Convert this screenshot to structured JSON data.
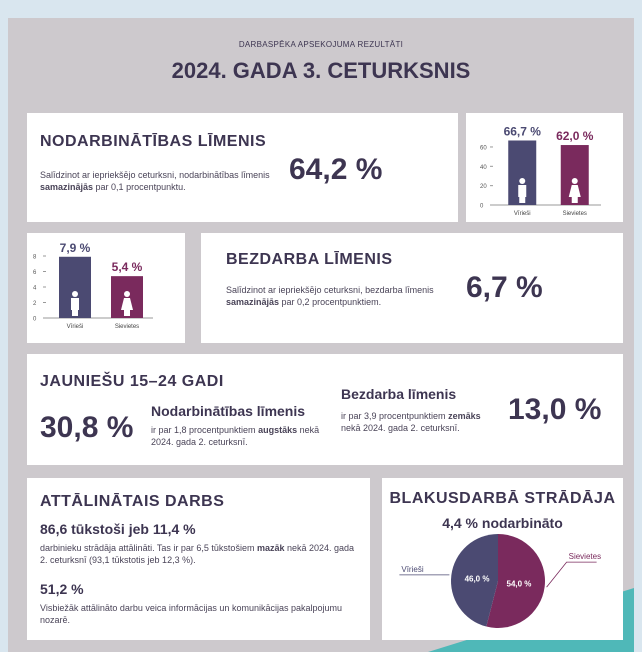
{
  "header": {
    "subtitle": "DARBASPĒKA APSEKOJUMA REZULTĀTI",
    "title": "2024. GADA 3. CETURKSNIS"
  },
  "employment": {
    "title": "NODARBINĀTĪBAS LĪMENIS",
    "text": [
      "Salīdzinot ar iepriekšējo ceturksni, nodarbinātības līmenis ",
      "samazinājās",
      " par 0,1 procentpunktu."
    ],
    "value": "64,2 %"
  },
  "unemployment": {
    "title": "BEZDARBA LĪMENIS",
    "text": [
      "Salīdzinot ar iepriekšējo ceturksni, bezdarba līmenis ",
      "samazinājās",
      " par 0,2 procentpunktiem."
    ],
    "value": "6,7 %"
  },
  "youth": {
    "title": "JAUNIEŠU 15–24 GADI",
    "employment": {
      "value": "30,8 %",
      "label": "Nodarbinātības līmenis",
      "text": [
        "ir par 1,8 procentpunktiem ",
        "augstāks",
        " nekā 2024. gada 2. ceturksnī."
      ]
    },
    "unemployment": {
      "label": "Bezdarba līmenis",
      "text": [
        "ir par 3,9 procentpunktiem ",
        "zemāks",
        " nekā 2024. gada 2. ceturksnī."
      ],
      "value": "13,0 %"
    }
  },
  "remote": {
    "title": "ATTĀLINĀTAIS DARBS",
    "headline": "86,6 tūkstoši jeb 11,4  %",
    "text": [
      "darbinieku strādāja attālināti. Tas ir par 6,5 tūkstošiem ",
      "mazāk",
      " nekā 2024. gada 2. ceturksnī (93,1 tūkstotis jeb 12,3 %)."
    ],
    "share": "51,2 %",
    "share_text": "Visbiežāk attālināto darbu veica informācijas un komunikācijas pakalpojumu nozarē."
  },
  "side_job": {
    "title": "BLAKUSDARBĀ STRĀDĀJA",
    "subtitle": "4,4 % nodarbināto"
  },
  "chart_data": [
    {
      "type": "bar",
      "categories": [
        "Vīrieši",
        "Sievietes"
      ],
      "values": [
        66.7,
        62.0
      ],
      "value_labels": [
        "66,7 %",
        "62,0 %"
      ],
      "colors": [
        "#4b4a72",
        "#7a2a5d"
      ],
      "ylim": [
        0,
        70
      ],
      "yticks": [
        0,
        20,
        40,
        60
      ]
    },
    {
      "type": "bar",
      "categories": [
        "Vīrieši",
        "Sievietes"
      ],
      "values": [
        7.9,
        5.4
      ],
      "value_labels": [
        "7,9 %",
        "5,4 %"
      ],
      "colors": [
        "#4b4a72",
        "#7a2a5d"
      ],
      "ylim": [
        0,
        8
      ],
      "yticks": [
        0,
        2,
        4,
        6,
        8
      ]
    },
    {
      "type": "pie",
      "categories": [
        "Sievietes",
        "Vīrieši"
      ],
      "values": [
        54.0,
        46.0
      ],
      "value_labels": [
        "54,0 %",
        "46,0 %"
      ],
      "colors": [
        "#7a2a5d",
        "#4b4a72"
      ]
    }
  ]
}
